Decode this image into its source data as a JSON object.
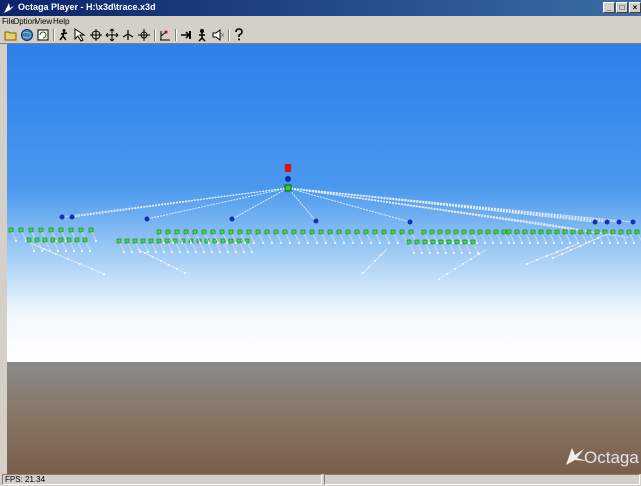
{
  "window": {
    "title": "Octaga Player - H:\\x3d\\trace.x3d"
  },
  "menu": {
    "items": [
      "File",
      "Option",
      "View",
      "Help"
    ]
  },
  "toolbar": {
    "buttons": [
      "open-icon",
      "web-icon",
      "reload-icon",
      "walk-icon",
      "select-icon",
      "examine-icon",
      "pan-icon",
      "fly-icon",
      "crosshair-icon",
      "viewpoint-icon",
      "next-viewpoint-icon",
      "person-icon",
      "sound-icon",
      "help-icon"
    ]
  },
  "scene": {
    "logo_text": "Octaga"
  },
  "status": {
    "fps": "FPS: 21.34"
  }
}
